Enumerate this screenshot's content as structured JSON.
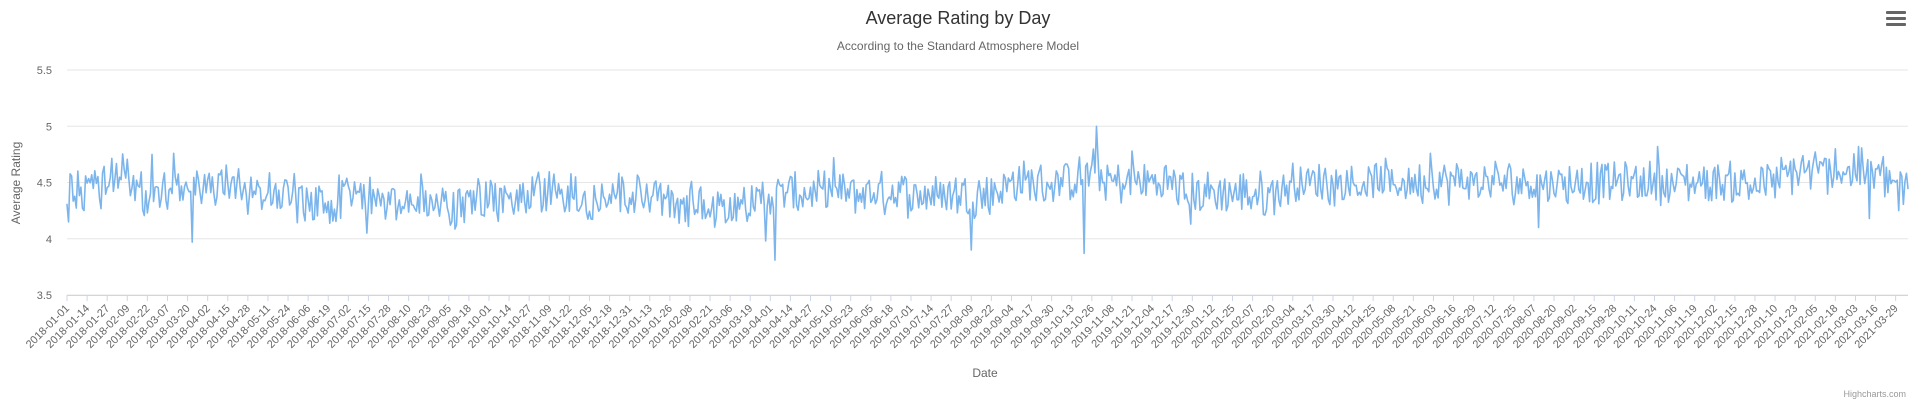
{
  "credits": "Highcharts.com",
  "menu_icon": "hamburger-menu-icon",
  "chart_data": {
    "type": "line",
    "title": "Average Rating by Day",
    "subtitle": "According to the Standard Atmosphere Model",
    "xlabel": "Date",
    "ylabel": "Average Rating",
    "ylim": [
      3.5,
      5.5
    ],
    "yticks": [
      "3.5",
      "4",
      "4.5",
      "5",
      "5.5"
    ],
    "xlim": [
      "2018-01-01",
      "2021-04-06"
    ],
    "grid": true,
    "legend": "none",
    "series_color": "#7cb5ec",
    "xtick_labels": [
      "2018-01-01",
      "2018-01-14",
      "2018-01-27",
      "2018-02-09",
      "2018-02-22",
      "2018-03-07",
      "2018-03-20",
      "2018-04-02",
      "2018-04-15",
      "2018-04-28",
      "2018-05-11",
      "2018-05-24",
      "2018-06-06",
      "2018-06-19",
      "2018-07-02",
      "2018-07-15",
      "2018-07-28",
      "2018-08-10",
      "2018-08-23",
      "2018-09-05",
      "2018-09-18",
      "2018-10-01",
      "2018-10-14",
      "2018-10-27",
      "2018-11-09",
      "2018-11-22",
      "2018-12-05",
      "2018-12-18",
      "2018-12-31",
      "2019-01-13",
      "2019-01-26",
      "2019-02-08",
      "2019-02-21",
      "2019-03-06",
      "2019-03-19",
      "2019-04-01",
      "2019-04-14",
      "2019-04-27",
      "2019-05-10",
      "2019-05-23",
      "2019-06-05",
      "2019-06-18",
      "2019-07-01",
      "2019-07-14",
      "2019-07-27",
      "2019-08-09",
      "2019-08-22",
      "2019-09-04",
      "2019-09-17",
      "2019-09-30",
      "2019-10-13",
      "2019-10-26",
      "2019-11-08",
      "2019-11-21",
      "2019-12-04",
      "2019-12-17",
      "2019-12-30",
      "2020-01-12",
      "2020-01-25",
      "2020-02-07",
      "2020-02-20",
      "2020-03-04",
      "2020-03-17",
      "2020-03-30",
      "2020-04-12",
      "2020-04-25",
      "2020-05-08",
      "2020-05-21",
      "2020-06-03",
      "2020-06-16",
      "2020-06-29",
      "2020-07-12",
      "2020-07-25",
      "2020-08-07",
      "2020-08-20",
      "2020-09-02",
      "2020-09-15",
      "2020-09-28",
      "2020-10-11",
      "2020-10-24",
      "2020-11-06",
      "2020-11-19",
      "2020-12-02",
      "2020-12-15",
      "2020-12-28",
      "2021-01-10",
      "2021-01-23",
      "2021-02-05",
      "2021-02-18",
      "2021-03-03",
      "2021-03-16",
      "2021-03-29"
    ],
    "series": [
      {
        "x": [
          "2018-01-01",
          "2018-01-14",
          "2018-01-27",
          "2018-02-09",
          "2018-02-22",
          "2018-03-07",
          "2018-03-20",
          "2018-04-02",
          "2018-04-15",
          "2018-04-28",
          "2018-05-11",
          "2018-05-24",
          "2018-06-06",
          "2018-06-19",
          "2018-07-02",
          "2018-07-15",
          "2018-07-28",
          "2018-08-10",
          "2018-08-23",
          "2018-09-05",
          "2018-09-18",
          "2018-10-01",
          "2018-10-14",
          "2018-10-27",
          "2018-11-09",
          "2018-11-22",
          "2018-12-05",
          "2018-12-18",
          "2018-12-31",
          "2019-01-13",
          "2019-01-26",
          "2019-02-08",
          "2019-02-21",
          "2019-03-06",
          "2019-03-19",
          "2019-04-01",
          "2019-04-14",
          "2019-04-27",
          "2019-05-10",
          "2019-05-23",
          "2019-06-05",
          "2019-06-18",
          "2019-07-01",
          "2019-07-14",
          "2019-07-27",
          "2019-08-09",
          "2019-08-22",
          "2019-09-04",
          "2019-09-17",
          "2019-09-30",
          "2019-10-13",
          "2019-10-26",
          "2019-11-08",
          "2019-11-21",
          "2019-12-04",
          "2019-12-17",
          "2019-12-30",
          "2020-01-12",
          "2020-01-25",
          "2020-02-07",
          "2020-02-20",
          "2020-03-04",
          "2020-03-17",
          "2020-03-30",
          "2020-04-12",
          "2020-04-25",
          "2020-05-08",
          "2020-05-21",
          "2020-06-03",
          "2020-06-16",
          "2020-06-29",
          "2020-07-12",
          "2020-07-25",
          "2020-08-07",
          "2020-08-20",
          "2020-09-02",
          "2020-09-15",
          "2020-09-28",
          "2020-10-11",
          "2020-10-24",
          "2020-11-06",
          "2020-11-19",
          "2020-12-02",
          "2020-12-15",
          "2020-12-28",
          "2021-01-10",
          "2021-01-23",
          "2021-02-05",
          "2021-02-18",
          "2021-03-03",
          "2021-03-16",
          "2021-03-29",
          "2021-04-06"
        ],
        "values": [
          4.5,
          4.4,
          4.5,
          4.6,
          4.3,
          4.4,
          4.5,
          4.5,
          4.5,
          4.4,
          4.4,
          4.4,
          4.3,
          4.3,
          4.4,
          4.4,
          4.3,
          4.3,
          4.4,
          4.3,
          4.3,
          4.4,
          4.3,
          4.4,
          4.4,
          4.4,
          4.3,
          4.4,
          4.4,
          4.4,
          4.3,
          4.3,
          4.3,
          4.3,
          4.3,
          4.4,
          4.4,
          4.4,
          4.4,
          4.4,
          4.4,
          4.4,
          4.4,
          4.4,
          4.4,
          4.4,
          4.4,
          4.5,
          4.5,
          4.5,
          4.5,
          4.6,
          4.5,
          4.5,
          4.5,
          4.5,
          4.4,
          4.4,
          4.4,
          4.4,
          4.4,
          4.5,
          4.5,
          4.5,
          4.5,
          4.5,
          4.5,
          4.5,
          4.5,
          4.5,
          4.5,
          4.5,
          4.5,
          4.5,
          4.5,
          4.5,
          4.5,
          4.5,
          4.5,
          4.5,
          4.5,
          4.5,
          4.5,
          4.5,
          4.5,
          4.5,
          4.6,
          4.6,
          4.6,
          4.6,
          4.6,
          4.5,
          4.4
        ]
      }
    ]
  }
}
